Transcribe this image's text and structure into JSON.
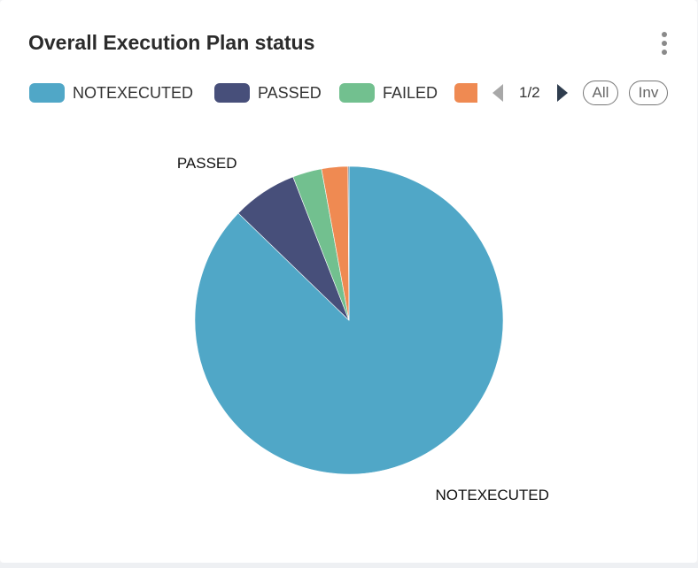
{
  "header": {
    "title": "Overall Execution Plan status",
    "menu_icon": "more-vertical-icon"
  },
  "legend": {
    "items": [
      {
        "label": "NOTEXECUTED",
        "color": "#50a7c7"
      },
      {
        "label": "PASSED",
        "color": "#474f7a"
      },
      {
        "label": "FAILED",
        "color": "#72c08f"
      },
      {
        "label": "",
        "color": "#ef8a52"
      }
    ],
    "page_text": "1/2",
    "all_label": "All",
    "inv_label": "Inv"
  },
  "chart_data": {
    "type": "pie",
    "title": "Overall Execution Plan status",
    "legend_position": "top",
    "series": [
      {
        "name": "NOTEXECUTED",
        "value": 85.5,
        "color": "#50a7c7",
        "label": "NOTEXECUTED"
      },
      {
        "name": "PASSED",
        "value": 6.7,
        "color": "#474f7a",
        "label": "PASSED"
      },
      {
        "name": "FAILED",
        "value": 3.0,
        "color": "#72c08f",
        "label": ""
      },
      {
        "name": "",
        "value": 2.7,
        "color": "#ef8a52",
        "label": ""
      },
      {
        "name": "",
        "value": 0.1,
        "color": "#3c5a73",
        "label": ""
      }
    ]
  }
}
